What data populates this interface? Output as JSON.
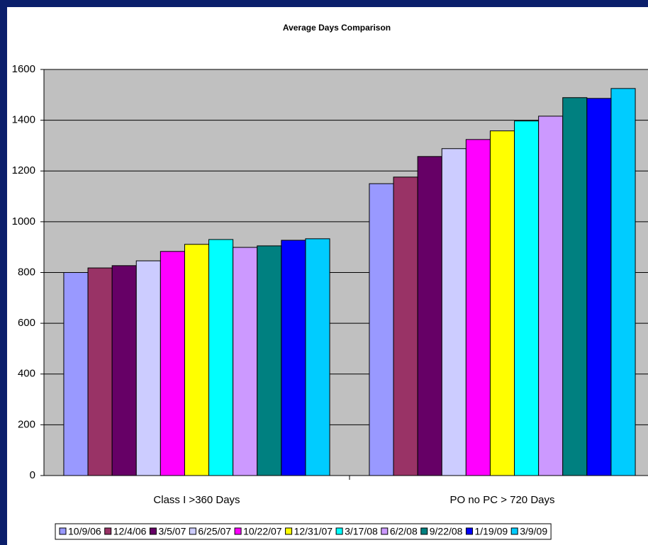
{
  "chart_data": {
    "type": "bar",
    "title": "Average Days Comparison",
    "categories": [
      "Class I >360 Days",
      "PO no PC > 720 Days"
    ],
    "series": [
      {
        "name": "10/9/06",
        "color": "#9999ff",
        "values": [
          800,
          1150
        ]
      },
      {
        "name": "12/4/06",
        "color": "#993366",
        "values": [
          818,
          1176
        ]
      },
      {
        "name": "3/5/07",
        "color": "#660066",
        "values": [
          827,
          1257
        ]
      },
      {
        "name": "6/25/07",
        "color": "#ccccff",
        "values": [
          846,
          1288
        ]
      },
      {
        "name": "10/22/07",
        "color": "#ff00ff",
        "values": [
          883,
          1324
        ]
      },
      {
        "name": "12/31/07",
        "color": "#ffff00",
        "values": [
          911,
          1358
        ]
      },
      {
        "name": "3/17/08",
        "color": "#00ffff",
        "values": [
          930,
          1397
        ]
      },
      {
        "name": "6/2/08",
        "color": "#cc99ff",
        "values": [
          899,
          1416
        ]
      },
      {
        "name": "9/22/08",
        "color": "#008080",
        "values": [
          905,
          1489
        ]
      },
      {
        "name": "1/19/09",
        "color": "#0000ff",
        "values": [
          927,
          1486
        ]
      },
      {
        "name": "3/9/09",
        "color": "#00ccff",
        "values": [
          933,
          1525
        ]
      }
    ],
    "ylim": [
      0,
      1600
    ],
    "yticks": [
      0,
      200,
      400,
      600,
      800,
      1000,
      1200,
      1400,
      1600
    ],
    "grid": true,
    "legend": "bottom"
  }
}
